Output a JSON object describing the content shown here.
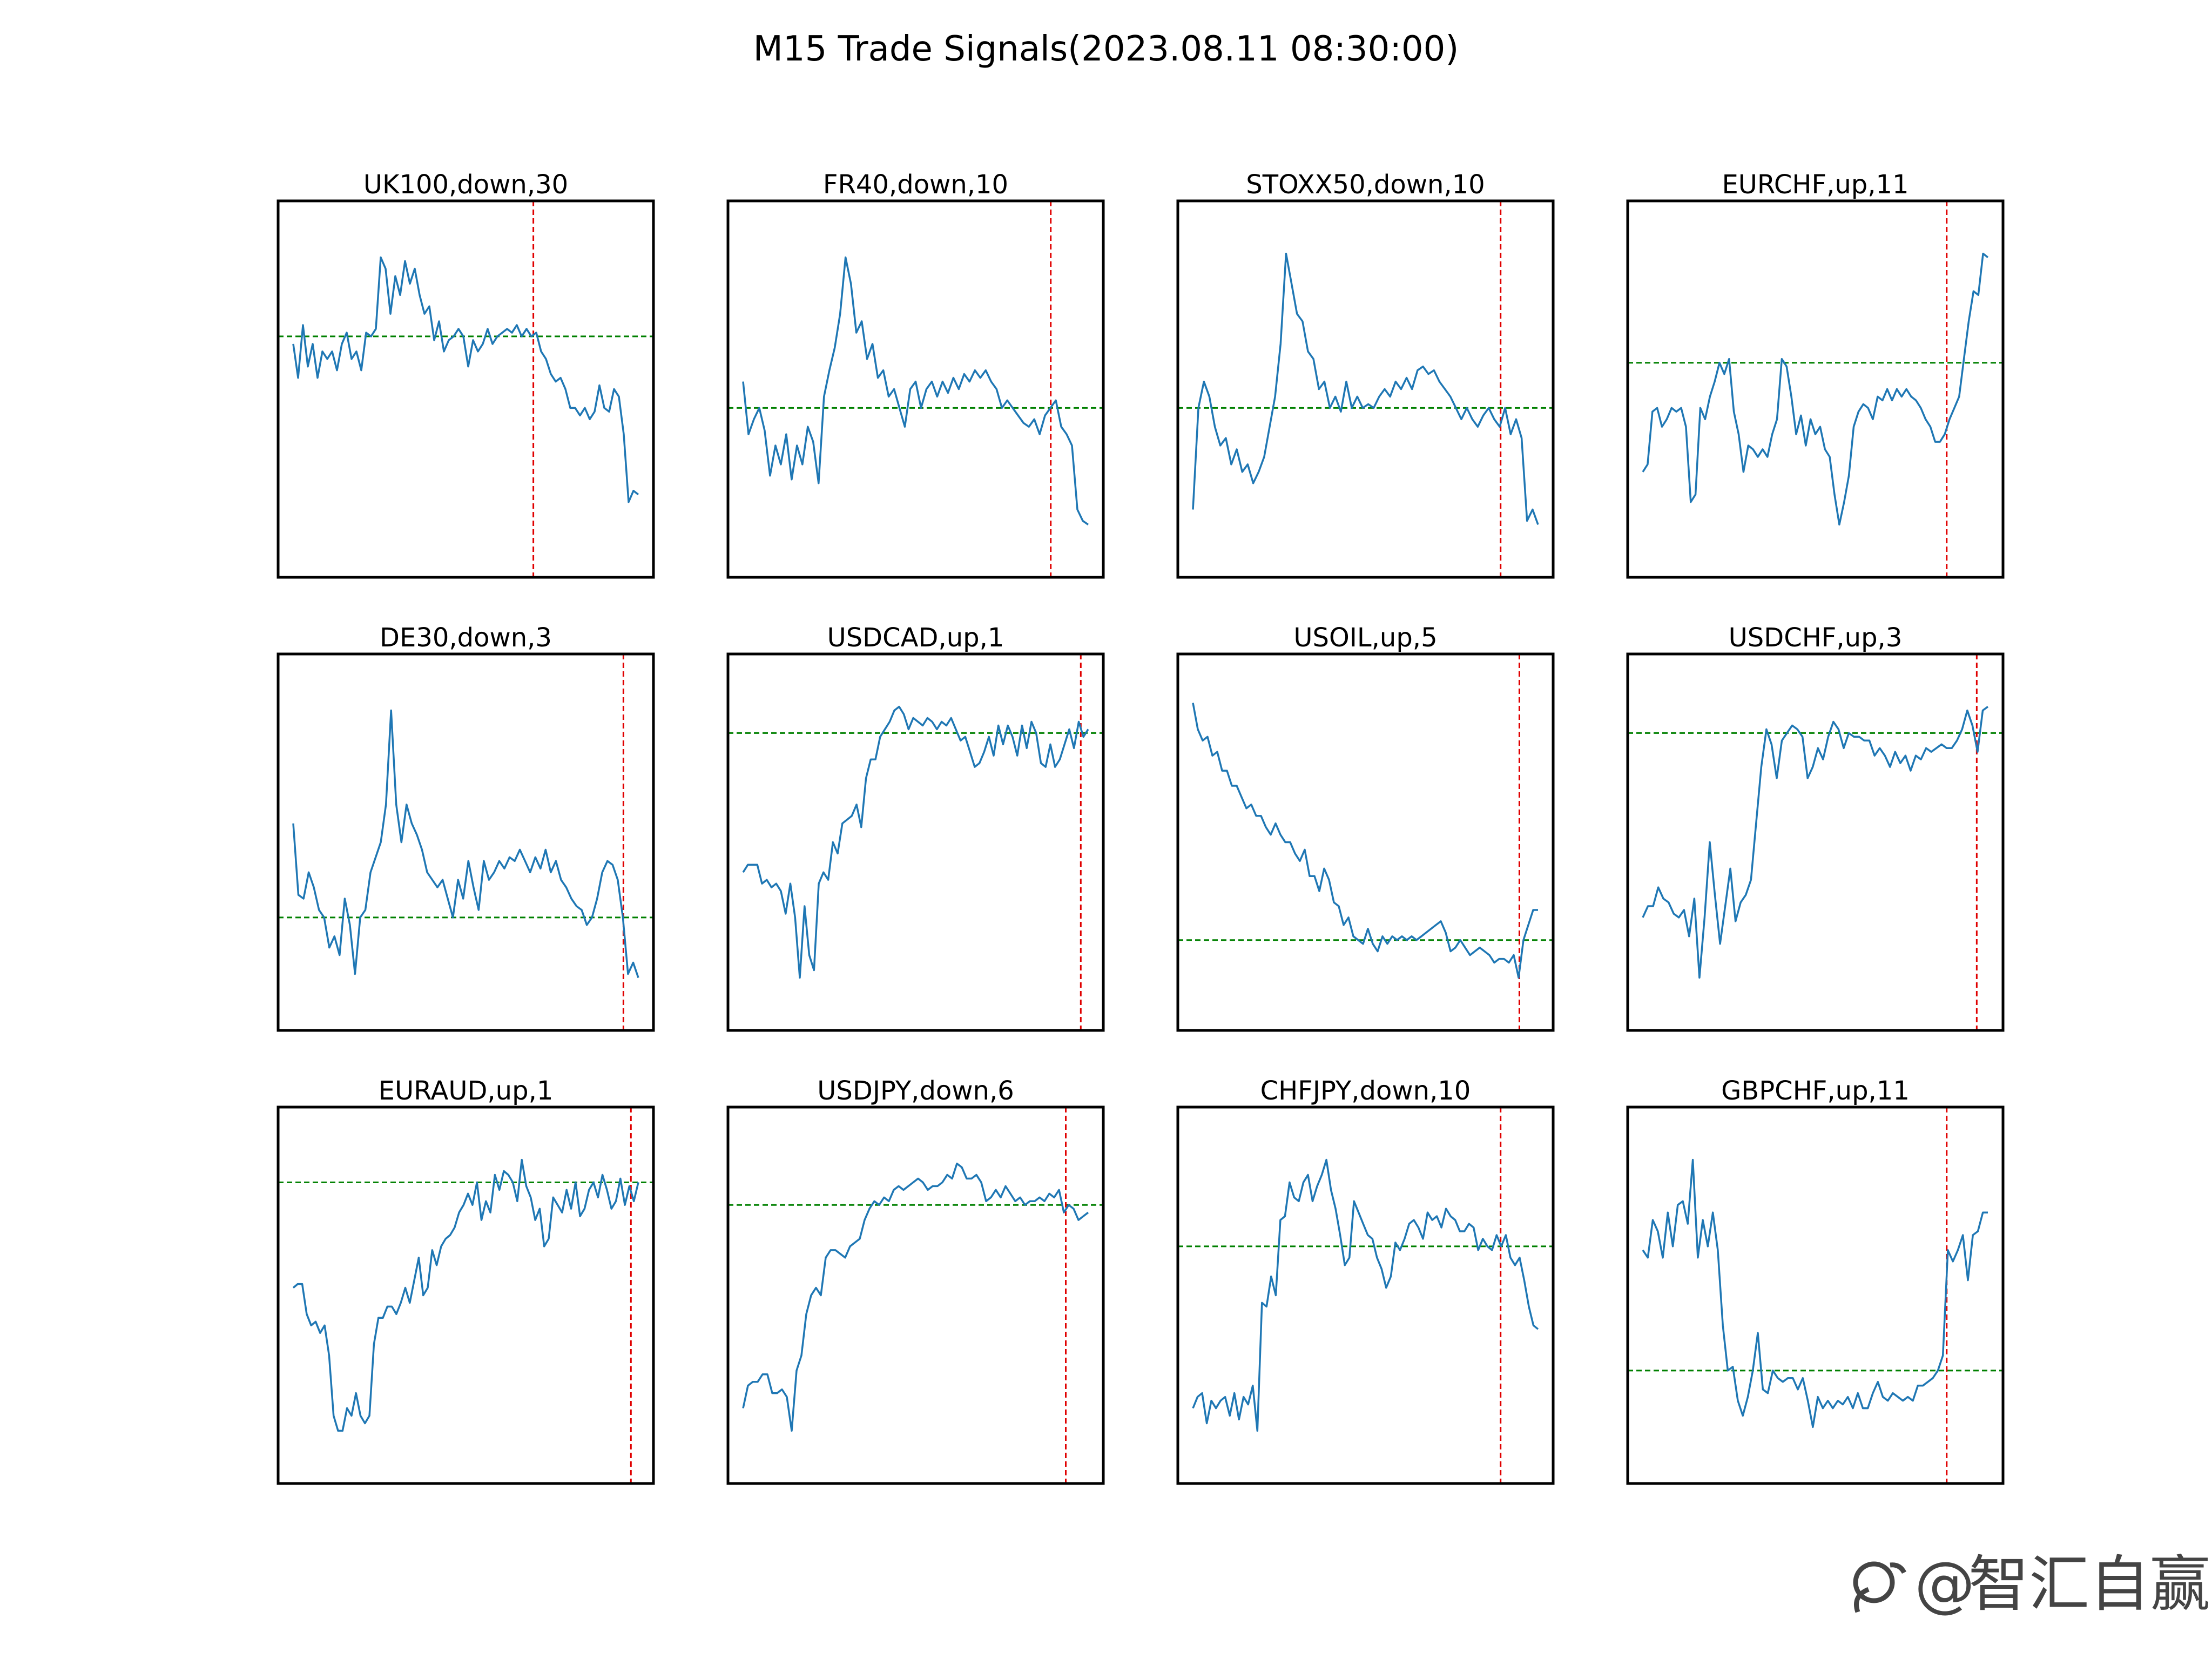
{
  "figure_title": "M15 Trade Signals(2023.08.11 08:30:00)",
  "watermark": {
    "symbol": "@",
    "text": "智汇自赢",
    "icon": "weibo-style-logo"
  },
  "colors": {
    "series": "#1f77b4",
    "hline": "#008000",
    "vline": "#e00000",
    "frame": "#000000"
  },
  "chart_data": [
    {
      "type": "line",
      "title": "UK100,down,30",
      "hline": 0.36,
      "vline": 0.68,
      "ylim": [
        0,
        1
      ],
      "grid": false,
      "values": [
        0.38,
        0.47,
        0.33,
        0.44,
        0.38,
        0.47,
        0.4,
        0.42,
        0.4,
        0.45,
        0.38,
        0.35,
        0.42,
        0.4,
        0.45,
        0.35,
        0.36,
        0.34,
        0.15,
        0.18,
        0.3,
        0.2,
        0.25,
        0.16,
        0.22,
        0.18,
        0.25,
        0.3,
        0.28,
        0.37,
        0.32,
        0.4,
        0.37,
        0.36,
        0.34,
        0.36,
        0.44,
        0.37,
        0.4,
        0.38,
        0.34,
        0.38,
        0.36,
        0.35,
        0.34,
        0.35,
        0.33,
        0.36,
        0.34,
        0.36,
        0.35,
        0.4,
        0.42,
        0.46,
        0.48,
        0.47,
        0.5,
        0.55,
        0.55,
        0.57,
        0.55,
        0.58,
        0.56,
        0.49,
        0.55,
        0.56,
        0.5,
        0.52,
        0.62,
        0.8,
        0.77,
        0.78
      ]
    },
    {
      "type": "line",
      "title": "FR40,down,10",
      "hline": 0.55,
      "vline": 0.86,
      "ylim": [
        0,
        1
      ],
      "grid": false,
      "values": [
        0.48,
        0.62,
        0.58,
        0.55,
        0.61,
        0.73,
        0.65,
        0.7,
        0.62,
        0.74,
        0.65,
        0.7,
        0.6,
        0.64,
        0.75,
        0.52,
        0.45,
        0.39,
        0.3,
        0.15,
        0.22,
        0.35,
        0.32,
        0.42,
        0.38,
        0.47,
        0.45,
        0.52,
        0.5,
        0.55,
        0.6,
        0.5,
        0.48,
        0.55,
        0.5,
        0.48,
        0.52,
        0.48,
        0.51,
        0.47,
        0.5,
        0.46,
        0.48,
        0.45,
        0.47,
        0.45,
        0.48,
        0.5,
        0.55,
        0.53,
        0.55,
        0.57,
        0.59,
        0.6,
        0.58,
        0.62,
        0.57,
        0.55,
        0.53,
        0.6,
        0.62,
        0.65,
        0.82,
        0.85,
        0.86
      ]
    },
    {
      "type": "line",
      "title": "STOXX50,down,10",
      "hline": 0.55,
      "vline": 0.86,
      "ylim": [
        0,
        1
      ],
      "grid": false,
      "values": [
        0.82,
        0.55,
        0.48,
        0.52,
        0.6,
        0.65,
        0.63,
        0.7,
        0.66,
        0.72,
        0.7,
        0.75,
        0.72,
        0.68,
        0.6,
        0.52,
        0.38,
        0.14,
        0.22,
        0.3,
        0.32,
        0.4,
        0.42,
        0.5,
        0.48,
        0.55,
        0.52,
        0.56,
        0.48,
        0.55,
        0.52,
        0.55,
        0.54,
        0.55,
        0.52,
        0.5,
        0.52,
        0.48,
        0.5,
        0.47,
        0.5,
        0.45,
        0.44,
        0.46,
        0.45,
        0.48,
        0.5,
        0.52,
        0.55,
        0.58,
        0.55,
        0.58,
        0.6,
        0.57,
        0.55,
        0.58,
        0.6,
        0.55,
        0.62,
        0.58,
        0.63,
        0.85,
        0.82,
        0.86
      ]
    },
    {
      "type": "line",
      "title": "EURCHF,up,11",
      "hline": 0.43,
      "vline": 0.85,
      "ylim": [
        0,
        1
      ],
      "grid": false,
      "values": [
        0.72,
        0.7,
        0.56,
        0.55,
        0.6,
        0.58,
        0.55,
        0.56,
        0.55,
        0.6,
        0.8,
        0.78,
        0.55,
        0.58,
        0.52,
        0.48,
        0.43,
        0.46,
        0.42,
        0.56,
        0.62,
        0.72,
        0.65,
        0.66,
        0.68,
        0.66,
        0.68,
        0.62,
        0.58,
        0.42,
        0.44,
        0.52,
        0.62,
        0.57,
        0.65,
        0.58,
        0.62,
        0.6,
        0.66,
        0.68,
        0.78,
        0.86,
        0.8,
        0.73,
        0.6,
        0.56,
        0.54,
        0.55,
        0.58,
        0.52,
        0.53,
        0.5,
        0.53,
        0.5,
        0.52,
        0.5,
        0.52,
        0.53,
        0.55,
        0.58,
        0.6,
        0.64,
        0.64,
        0.62,
        0.58,
        0.55,
        0.52,
        0.42,
        0.32,
        0.24,
        0.25,
        0.14,
        0.15
      ]
    },
    {
      "type": "line",
      "title": "DE30,down,3",
      "hline": 0.7,
      "vline": 0.92,
      "ylim": [
        0,
        1
      ],
      "grid": false,
      "values": [
        0.45,
        0.64,
        0.65,
        0.58,
        0.62,
        0.68,
        0.7,
        0.78,
        0.75,
        0.8,
        0.65,
        0.72,
        0.85,
        0.7,
        0.68,
        0.58,
        0.54,
        0.5,
        0.4,
        0.15,
        0.4,
        0.5,
        0.4,
        0.45,
        0.48,
        0.52,
        0.58,
        0.6,
        0.62,
        0.6,
        0.65,
        0.7,
        0.6,
        0.65,
        0.55,
        0.62,
        0.68,
        0.55,
        0.6,
        0.58,
        0.55,
        0.57,
        0.54,
        0.55,
        0.52,
        0.55,
        0.58,
        0.54,
        0.57,
        0.52,
        0.58,
        0.55,
        0.6,
        0.62,
        0.65,
        0.67,
        0.68,
        0.72,
        0.7,
        0.65,
        0.58,
        0.55,
        0.56,
        0.6,
        0.7,
        0.85,
        0.82,
        0.86
      ]
    },
    {
      "type": "line",
      "title": "USDCAD,up,1",
      "hline": 0.21,
      "vline": 0.94,
      "ylim": [
        0,
        1
      ],
      "grid": false,
      "values": [
        0.58,
        0.56,
        0.56,
        0.56,
        0.61,
        0.6,
        0.62,
        0.61,
        0.63,
        0.69,
        0.61,
        0.7,
        0.86,
        0.67,
        0.8,
        0.84,
        0.61,
        0.58,
        0.6,
        0.5,
        0.53,
        0.45,
        0.44,
        0.43,
        0.4,
        0.46,
        0.33,
        0.28,
        0.28,
        0.22,
        0.2,
        0.18,
        0.15,
        0.14,
        0.16,
        0.2,
        0.17,
        0.18,
        0.19,
        0.17,
        0.18,
        0.2,
        0.18,
        0.19,
        0.17,
        0.2,
        0.23,
        0.22,
        0.26,
        0.3,
        0.29,
        0.26,
        0.22,
        0.27,
        0.19,
        0.24,
        0.19,
        0.22,
        0.27,
        0.19,
        0.25,
        0.18,
        0.21,
        0.29,
        0.3,
        0.24,
        0.3,
        0.28,
        0.24,
        0.2,
        0.25,
        0.18,
        0.22,
        0.2
      ]
    },
    {
      "type": "line",
      "title": "USOIL,up,5",
      "hline": 0.76,
      "vline": 0.91,
      "ylim": [
        0,
        1
      ],
      "grid": false,
      "values": [
        0.13,
        0.2,
        0.23,
        0.22,
        0.27,
        0.26,
        0.31,
        0.31,
        0.35,
        0.35,
        0.38,
        0.41,
        0.4,
        0.43,
        0.43,
        0.46,
        0.48,
        0.45,
        0.48,
        0.5,
        0.5,
        0.53,
        0.55,
        0.52,
        0.59,
        0.59,
        0.63,
        0.57,
        0.6,
        0.66,
        0.67,
        0.72,
        0.7,
        0.75,
        0.76,
        0.77,
        0.73,
        0.77,
        0.79,
        0.75,
        0.77,
        0.75,
        0.76,
        0.75,
        0.76,
        0.75,
        0.76,
        0.75,
        0.74,
        0.73,
        0.72,
        0.71,
        0.74,
        0.79,
        0.78,
        0.76,
        0.78,
        0.8,
        0.79,
        0.78,
        0.79,
        0.8,
        0.82,
        0.81,
        0.81,
        0.82,
        0.8,
        0.86,
        0.76,
        0.72,
        0.68,
        0.68
      ]
    },
    {
      "type": "line",
      "title": "USDCHF,up,3",
      "hline": 0.21,
      "vline": 0.93,
      "ylim": [
        0,
        1
      ],
      "grid": false,
      "values": [
        0.7,
        0.67,
        0.67,
        0.62,
        0.65,
        0.66,
        0.69,
        0.7,
        0.68,
        0.75,
        0.65,
        0.86,
        0.7,
        0.5,
        0.64,
        0.77,
        0.67,
        0.57,
        0.71,
        0.66,
        0.64,
        0.6,
        0.45,
        0.3,
        0.2,
        0.24,
        0.33,
        0.23,
        0.21,
        0.19,
        0.2,
        0.22,
        0.33,
        0.3,
        0.25,
        0.28,
        0.22,
        0.18,
        0.2,
        0.25,
        0.21,
        0.22,
        0.22,
        0.23,
        0.23,
        0.27,
        0.25,
        0.27,
        0.3,
        0.26,
        0.29,
        0.27,
        0.31,
        0.27,
        0.28,
        0.25,
        0.26,
        0.25,
        0.24,
        0.25,
        0.25,
        0.23,
        0.2,
        0.15,
        0.19,
        0.26,
        0.15,
        0.14
      ]
    },
    {
      "type": "line",
      "title": "EURAUD,up,1",
      "hline": 0.2,
      "vline": 0.94,
      "ylim": [
        0,
        1
      ],
      "grid": false,
      "values": [
        0.48,
        0.47,
        0.47,
        0.55,
        0.58,
        0.57,
        0.6,
        0.58,
        0.66,
        0.82,
        0.86,
        0.86,
        0.8,
        0.82,
        0.76,
        0.82,
        0.84,
        0.82,
        0.63,
        0.56,
        0.56,
        0.53,
        0.53,
        0.55,
        0.52,
        0.48,
        0.52,
        0.46,
        0.4,
        0.5,
        0.48,
        0.38,
        0.42,
        0.37,
        0.35,
        0.34,
        0.32,
        0.28,
        0.26,
        0.23,
        0.26,
        0.2,
        0.3,
        0.25,
        0.28,
        0.18,
        0.22,
        0.17,
        0.18,
        0.2,
        0.25,
        0.14,
        0.21,
        0.24,
        0.3,
        0.27,
        0.37,
        0.35,
        0.24,
        0.26,
        0.28,
        0.22,
        0.27,
        0.2,
        0.29,
        0.27,
        0.22,
        0.2,
        0.24,
        0.18,
        0.22,
        0.27,
        0.25,
        0.19,
        0.26,
        0.21,
        0.25,
        0.2
      ]
    },
    {
      "type": "line",
      "title": "USDJPY,down,6",
      "hline": 0.26,
      "vline": 0.9,
      "ylim": [
        0,
        1
      ],
      "grid": false,
      "values": [
        0.8,
        0.74,
        0.73,
        0.73,
        0.71,
        0.71,
        0.76,
        0.76,
        0.75,
        0.77,
        0.86,
        0.7,
        0.66,
        0.55,
        0.5,
        0.48,
        0.5,
        0.4,
        0.38,
        0.38,
        0.39,
        0.4,
        0.37,
        0.36,
        0.35,
        0.3,
        0.27,
        0.25,
        0.26,
        0.24,
        0.25,
        0.22,
        0.21,
        0.22,
        0.21,
        0.2,
        0.19,
        0.2,
        0.22,
        0.21,
        0.21,
        0.2,
        0.18,
        0.19,
        0.15,
        0.16,
        0.19,
        0.19,
        0.18,
        0.2,
        0.25,
        0.24,
        0.22,
        0.24,
        0.21,
        0.23,
        0.25,
        0.24,
        0.26,
        0.25,
        0.25,
        0.24,
        0.25,
        0.23,
        0.24,
        0.22,
        0.28,
        0.26,
        0.27,
        0.3,
        0.29,
        0.28
      ]
    },
    {
      "type": "line",
      "title": "CHFJPY,down,10",
      "hline": 0.37,
      "vline": 0.86,
      "ylim": [
        0,
        1
      ],
      "grid": false,
      "values": [
        0.8,
        0.77,
        0.76,
        0.84,
        0.78,
        0.8,
        0.78,
        0.77,
        0.82,
        0.76,
        0.83,
        0.77,
        0.79,
        0.74,
        0.86,
        0.52,
        0.53,
        0.45,
        0.5,
        0.3,
        0.29,
        0.2,
        0.24,
        0.25,
        0.2,
        0.18,
        0.25,
        0.21,
        0.18,
        0.14,
        0.22,
        0.27,
        0.34,
        0.42,
        0.4,
        0.25,
        0.28,
        0.31,
        0.34,
        0.35,
        0.4,
        0.43,
        0.48,
        0.45,
        0.36,
        0.38,
        0.35,
        0.31,
        0.3,
        0.32,
        0.35,
        0.28,
        0.3,
        0.29,
        0.32,
        0.27,
        0.29,
        0.3,
        0.33,
        0.33,
        0.31,
        0.32,
        0.38,
        0.35,
        0.37,
        0.38,
        0.34,
        0.37,
        0.34,
        0.4,
        0.42,
        0.4,
        0.46,
        0.53,
        0.58,
        0.59
      ]
    },
    {
      "type": "line",
      "title": "GBPCHF,up,11",
      "hline": 0.7,
      "vline": 0.85,
      "ylim": [
        0,
        1
      ],
      "grid": false,
      "values": [
        0.38,
        0.4,
        0.3,
        0.33,
        0.4,
        0.28,
        0.37,
        0.26,
        0.25,
        0.31,
        0.14,
        0.4,
        0.3,
        0.37,
        0.28,
        0.38,
        0.58,
        0.7,
        0.69,
        0.78,
        0.82,
        0.77,
        0.7,
        0.6,
        0.75,
        0.76,
        0.7,
        0.72,
        0.73,
        0.72,
        0.72,
        0.75,
        0.72,
        0.78,
        0.85,
        0.77,
        0.8,
        0.78,
        0.8,
        0.78,
        0.79,
        0.77,
        0.8,
        0.76,
        0.8,
        0.8,
        0.76,
        0.73,
        0.77,
        0.78,
        0.76,
        0.77,
        0.78,
        0.77,
        0.78,
        0.74,
        0.74,
        0.73,
        0.72,
        0.7,
        0.66,
        0.38,
        0.41,
        0.38,
        0.34,
        0.46,
        0.34,
        0.33,
        0.28,
        0.28
      ]
    }
  ]
}
